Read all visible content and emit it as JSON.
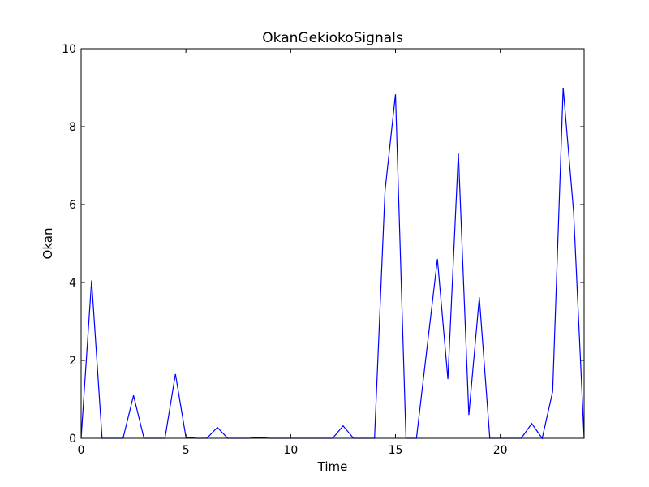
{
  "chart_data": {
    "type": "line",
    "title": "OkanGekiokoSignals",
    "xlabel": "Time",
    "ylabel": "Okan",
    "xlim": [
      0,
      24
    ],
    "ylim": [
      0,
      10
    ],
    "xticks": [
      0,
      5,
      10,
      15,
      20
    ],
    "yticks": [
      0,
      2,
      4,
      6,
      8,
      10
    ],
    "grid": false,
    "line_color": "#0000ff",
    "series": [
      {
        "x": [
          0,
          0.5,
          1,
          1.5,
          2,
          2.5,
          3,
          3.5,
          4,
          4.5,
          5,
          5.5,
          6,
          6.5,
          7,
          7.5,
          8,
          8.5,
          9,
          9.5,
          10,
          10.5,
          11,
          11.5,
          12,
          12.5,
          13,
          13.5,
          14,
          14.5,
          15,
          15.5,
          16,
          16.5,
          17,
          17.5,
          18,
          18.5,
          19,
          19.5,
          20,
          20.5,
          21,
          21.5,
          22,
          22.5,
          23,
          23.5,
          24
        ],
        "y": [
          0,
          4.05,
          0,
          0,
          0,
          1.1,
          0,
          0,
          0,
          1.65,
          0.03,
          0,
          0,
          0.28,
          0,
          0,
          0,
          0.02,
          0,
          0,
          0,
          0,
          0,
          0,
          0,
          0.32,
          0,
          0,
          0,
          6.35,
          8.83,
          0,
          0,
          2.3,
          4.6,
          1.52,
          7.32,
          0.6,
          3.62,
          0,
          0,
          0,
          0,
          0.38,
          0,
          1.2,
          9.0,
          5.8,
          0
        ]
      }
    ]
  }
}
